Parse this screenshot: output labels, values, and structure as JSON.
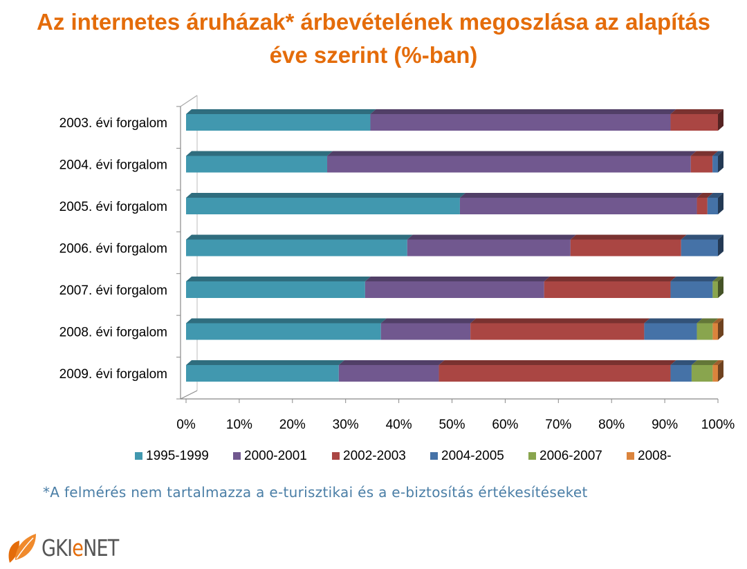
{
  "title_lines": [
    "Az internetes áruházak* árbevételének megoszlása az alapítás",
    "éve szerint (%-ban)"
  ],
  "footnote": "*A felmérés nem tartalmazza a e-turisztikai és a e-biztosítás értékesítéseket",
  "logo": {
    "prefix": "GKI",
    "accent": "e",
    "suffix": "NET"
  },
  "colors": {
    "title": "#e46c0a",
    "footnote": "#4a7ea6"
  },
  "chart_data": {
    "type": "bar",
    "orientation": "horizontal",
    "stacked": "percent",
    "categories": [
      "2003. évi forgalom",
      "2004. évi forgalom",
      "2005. évi forgalom",
      "2006. évi forgalom",
      "2007. évi forgalom",
      "2008. évi forgalom",
      "2009. évi forgalom"
    ],
    "x_ticks": [
      "0%",
      "10%",
      "20%",
      "30%",
      "40%",
      "50%",
      "60%",
      "70%",
      "80%",
      "90%",
      "100%"
    ],
    "xlim": [
      0,
      100
    ],
    "legend_position": "bottom",
    "series": [
      {
        "name": "1995-1999",
        "color": "#4198af",
        "values": [
          35,
          26,
          52,
          42,
          34,
          37,
          29
        ]
      },
      {
        "name": "2000-2001",
        "color": "#71588f",
        "values": [
          57,
          67,
          45,
          31,
          34,
          17,
          19
        ]
      },
      {
        "name": "2002-2003",
        "color": "#aa4643",
        "values": [
          9,
          4,
          2,
          21,
          24,
          33,
          44
        ]
      },
      {
        "name": "2004-2005",
        "color": "#4572a7",
        "values": [
          0,
          1,
          2,
          7,
          8,
          10,
          4
        ]
      },
      {
        "name": "2006-2007",
        "color": "#89a54e",
        "values": [
          0,
          0,
          0,
          0,
          1,
          3,
          4
        ]
      },
      {
        "name": "2008-",
        "color": "#db843d",
        "values": [
          0,
          0,
          0,
          0,
          0,
          1,
          1
        ]
      }
    ]
  }
}
